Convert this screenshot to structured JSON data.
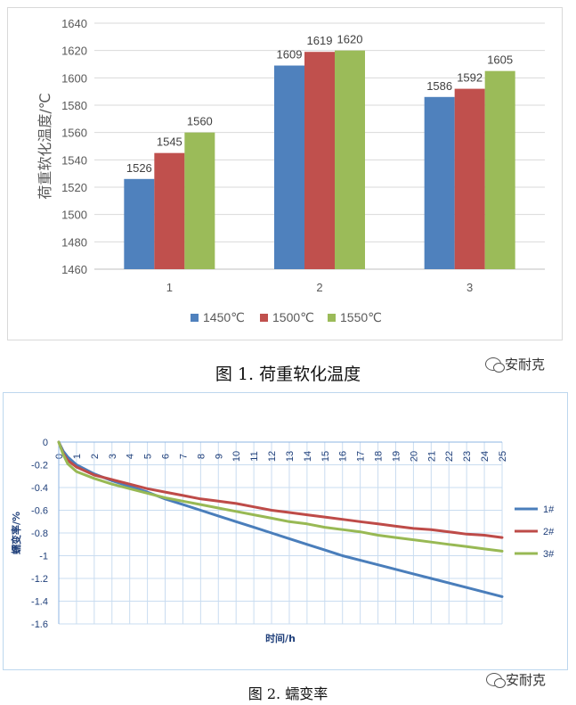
{
  "chart_data": [
    {
      "type": "bar",
      "categories": [
        "1",
        "2",
        "3"
      ],
      "series": [
        {
          "name": "1450℃",
          "color": "#4f81bd",
          "values": [
            1526,
            1609,
            1586
          ]
        },
        {
          "name": "1500℃",
          "color": "#c0504d",
          "values": [
            1545,
            1619,
            1592
          ]
        },
        {
          "name": "1550℃",
          "color": "#9bbb59",
          "values": [
            1560,
            1620,
            1605
          ]
        }
      ],
      "ylabel": "荷重软化温度/℃",
      "xlabel": "",
      "ylim": [
        1460,
        1640
      ],
      "yticks": [
        1460,
        1480,
        1500,
        1520,
        1540,
        1560,
        1580,
        1600,
        1620,
        1640
      ],
      "grid": true,
      "legend": "bottom",
      "data_labels": true
    },
    {
      "type": "line",
      "x": [
        0,
        0.25,
        0.5,
        1,
        2,
        3,
        4,
        5,
        6,
        7,
        8,
        9,
        10,
        11,
        12,
        13,
        14,
        15,
        16,
        17,
        18,
        19,
        20,
        21,
        22,
        23,
        24,
        25
      ],
      "series": [
        {
          "name": "1#",
          "color": "#4a7ebb",
          "values": [
            0,
            -0.08,
            -0.13,
            -0.2,
            -0.28,
            -0.34,
            -0.39,
            -0.44,
            -0.5,
            -0.55,
            -0.6,
            -0.65,
            -0.7,
            -0.75,
            -0.8,
            -0.85,
            -0.9,
            -0.95,
            -1.0,
            -1.04,
            -1.08,
            -1.12,
            -1.16,
            -1.2,
            -1.24,
            -1.28,
            -1.32,
            -1.36
          ]
        },
        {
          "name": "2#",
          "color": "#be4b48",
          "values": [
            0,
            -0.1,
            -0.16,
            -0.22,
            -0.29,
            -0.33,
            -0.37,
            -0.41,
            -0.44,
            -0.47,
            -0.5,
            -0.52,
            -0.54,
            -0.57,
            -0.6,
            -0.62,
            -0.64,
            -0.66,
            -0.68,
            -0.7,
            -0.72,
            -0.74,
            -0.76,
            -0.77,
            -0.79,
            -0.81,
            -0.82,
            -0.84
          ]
        },
        {
          "name": "3#",
          "color": "#98b954",
          "values": [
            0,
            -0.11,
            -0.19,
            -0.26,
            -0.32,
            -0.37,
            -0.41,
            -0.45,
            -0.49,
            -0.52,
            -0.55,
            -0.58,
            -0.61,
            -0.64,
            -0.67,
            -0.7,
            -0.72,
            -0.75,
            -0.77,
            -0.79,
            -0.82,
            -0.84,
            -0.86,
            -0.88,
            -0.9,
            -0.92,
            -0.94,
            -0.96
          ]
        }
      ],
      "xlabel": "时间/h",
      "ylabel": "蠕变率/%",
      "xlim": [
        0,
        25
      ],
      "xticks": [
        0,
        1,
        2,
        3,
        4,
        5,
        6,
        7,
        8,
        9,
        10,
        11,
        12,
        13,
        14,
        15,
        16,
        17,
        18,
        19,
        20,
        21,
        22,
        23,
        24,
        25
      ],
      "ylim": [
        -1.6,
        0
      ],
      "yticks": [
        0,
        -0.2,
        -0.4,
        -0.6,
        -0.8,
        -1,
        -1.2,
        -1.4,
        -1.6
      ],
      "xaxis_position": "top",
      "grid": true,
      "legend": "right"
    }
  ],
  "captions": {
    "figure1": "图 1. 荷重软化温度",
    "figure2": "图 2. 蠕变率"
  },
  "watermark": {
    "text": "安耐克",
    "icon": "wechat-icon"
  }
}
